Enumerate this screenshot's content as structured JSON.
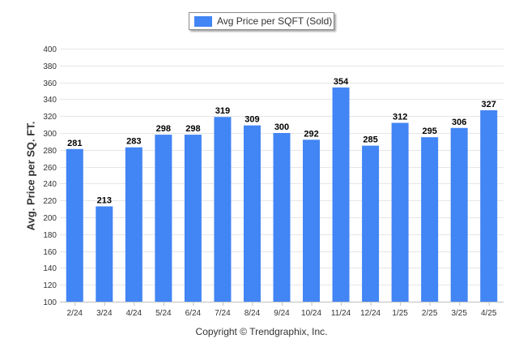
{
  "chart_data": {
    "type": "bar",
    "title": "",
    "legend": {
      "label": "Avg Price per SQFT (Sold)",
      "placement": "top-center"
    },
    "ylabel": "Avg. Price per SQ. FT.",
    "xlabel": "",
    "footer": "Copyright © Trendgraphix, Inc.",
    "categories": [
      "2/24",
      "3/24",
      "4/24",
      "5/24",
      "6/24",
      "7/24",
      "8/24",
      "9/24",
      "10/24",
      "11/24",
      "12/24",
      "1/25",
      "2/25",
      "3/25",
      "4/25"
    ],
    "series": [
      {
        "name": "Avg Price per SQFT (Sold)",
        "values": [
          281,
          213,
          283,
          298,
          298,
          319,
          309,
          300,
          292,
          354,
          285,
          312,
          295,
          306,
          327
        ]
      }
    ],
    "ylim": [
      100,
      400
    ],
    "yticks": [
      100,
      120,
      140,
      160,
      180,
      200,
      220,
      240,
      260,
      280,
      300,
      320,
      340,
      360,
      380,
      400
    ],
    "grid": true,
    "colors": {
      "bar": "#4285f4",
      "grid": "#e6e6e6",
      "text": "#333333"
    }
  }
}
